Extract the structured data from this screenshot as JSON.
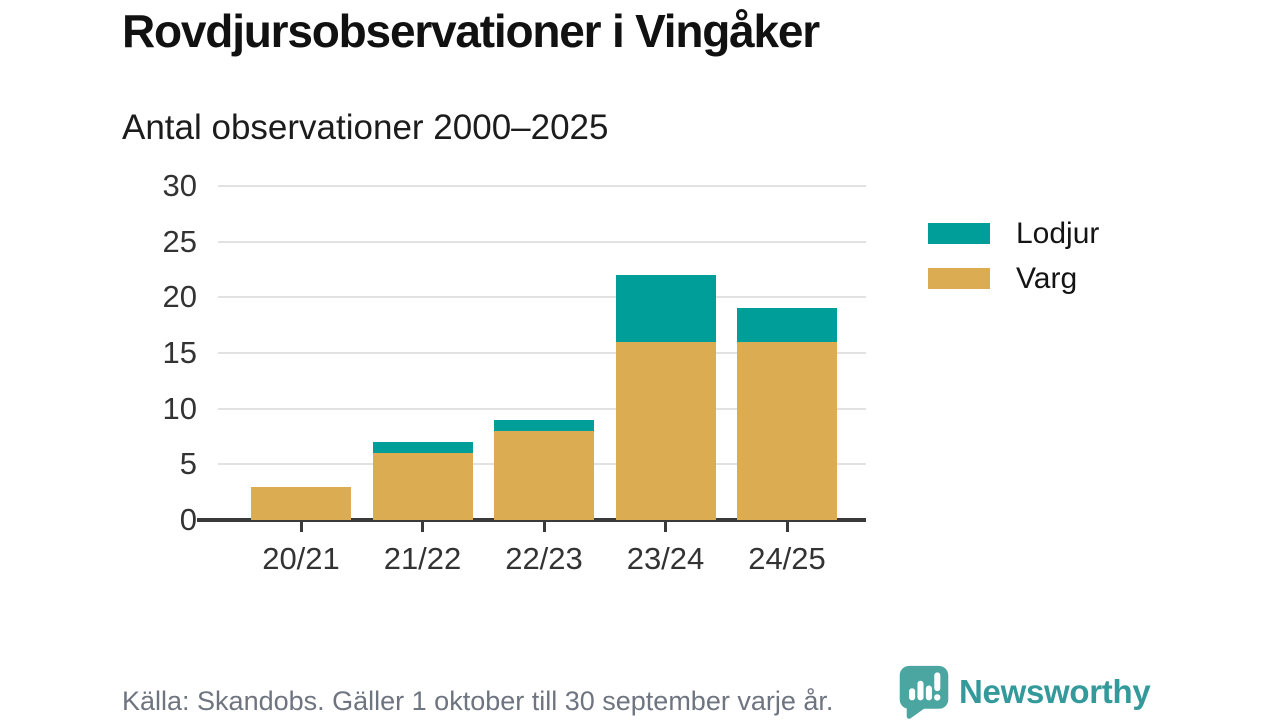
{
  "header": {
    "title": "Rovdjursobservationer i Vingåker",
    "subtitle": "Antal observationer 2000–2025"
  },
  "chart_data": {
    "type": "bar",
    "stacked": true,
    "title": "Rovdjursobservationer i Vingåker",
    "subtitle": "Antal observationer 2000–2025",
    "categories": [
      "20/21",
      "21/22",
      "22/23",
      "23/24",
      "24/25"
    ],
    "series": [
      {
        "name": "Varg",
        "color": "#DCAC53",
        "values": [
          3,
          6,
          8,
          16,
          16
        ]
      },
      {
        "name": "Lodjur",
        "color": "#009E98",
        "values": [
          0,
          1,
          1,
          6,
          3
        ]
      }
    ],
    "stack_totals": [
      3,
      7,
      9,
      22,
      19
    ],
    "xlabel": "",
    "ylabel": "",
    "ylim": [
      0,
      30
    ],
    "yticks": [
      0,
      5,
      10,
      15,
      20,
      25,
      30
    ],
    "grid": true,
    "legend_position": "right"
  },
  "legend": {
    "items": [
      {
        "label": "Lodjur",
        "color": "#009E98"
      },
      {
        "label": "Varg",
        "color": "#DCAC53"
      }
    ]
  },
  "footer": {
    "source": "Källa: Skandobs. Gäller 1 oktober till 30 september varje år."
  },
  "brand": {
    "name": "Newsworthy",
    "icon": "speech-bubble-bar-chart-icon",
    "icon_color": "#4BA5A1",
    "text_color": "#34999A"
  }
}
